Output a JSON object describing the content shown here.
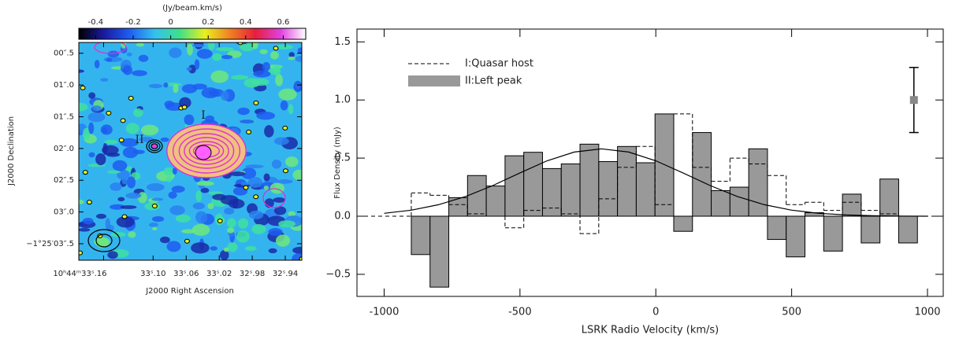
{
  "chart_data": [
    {
      "type": "image",
      "xlabel": "J2000 Right Ascension",
      "ylabel": "J2000 Declination",
      "colorbar_label": "(Jy/beam.km/s)",
      "colormap": [
        "#000000",
        "#1a1aa0",
        "#1e5cf0",
        "#33c0f0",
        "#3fe08a",
        "#e8f020",
        "#f08020",
        "#e81e3c",
        "#e040e0",
        "#ffffff"
      ],
      "clim": [
        -0.49,
        0.72
      ],
      "cticks": [
        -0.4,
        -0.2,
        0,
        0.2,
        0.4,
        0.6
      ],
      "xlim": [
        33.19,
        32.92
      ],
      "xticks": [
        {
          "value": 33.16,
          "label": "10ʰ44ᵐ33ˢ.16"
        },
        {
          "value": 33.1,
          "label": "33ˢ.10"
        },
        {
          "value": 33.06,
          "label": "33ˢ.06"
        },
        {
          "value": 33.02,
          "label": "33ˢ.02"
        },
        {
          "value": 32.98,
          "label": "32ˢ.98"
        },
        {
          "value": 32.94,
          "label": "32ˢ.94"
        }
      ],
      "ylim": [
        0.33,
        3.76
      ],
      "yticks": [
        {
          "value": 0.5,
          "label": "00″.5"
        },
        {
          "value": 1.0,
          "label": "01″.0"
        },
        {
          "value": 1.5,
          "label": "01″.5"
        },
        {
          "value": 2.0,
          "label": "02″.0"
        },
        {
          "value": 2.5,
          "label": "02″.5"
        },
        {
          "value": 3.0,
          "label": "03″.0"
        },
        {
          "value": 3.5,
          "label": "−1°25′03″.5"
        }
      ],
      "annotations": [
        "I",
        "II"
      ]
    },
    {
      "type": "histogram",
      "xlabel": "LSRK Radio Velocity (km/s)",
      "ylabel": "Flux Density (mJy)",
      "xlim": [
        -1100,
        1058
      ],
      "ylim": [
        -0.69,
        1.61
      ],
      "xticks": [
        -1000,
        -500,
        0,
        500,
        1000
      ],
      "yticks": [
        {
          "value": -0.5,
          "label": "−0.5"
        },
        {
          "value": 0,
          "label": "0.0"
        },
        0.5,
        {
          "value": 1,
          "label": "1.0"
        },
        1.5
      ],
      "legend": "upper left",
      "bins": [
        -900,
        -831,
        -762,
        -693,
        -624,
        -555,
        -486,
        -417,
        -348,
        -279,
        -210,
        -141,
        -72,
        -3,
        66,
        135,
        204,
        273,
        342,
        411,
        480,
        549,
        618,
        687,
        756,
        825,
        894,
        963
      ],
      "series": [
        {
          "name": "I:Quasar host",
          "color": "#000000",
          "style": "dashed",
          "values": [
            0.2,
            0.18,
            0.1,
            0.02,
            0.0,
            -0.1,
            0.05,
            0.07,
            0.02,
            -0.15,
            0.15,
            0.42,
            0.6,
            0.1,
            0.88,
            0.42,
            0.3,
            0.5,
            0.45,
            0.35,
            0.1,
            0.12,
            0.05,
            0.12,
            0.05,
            0.02,
            0.0
          ]
        },
        {
          "name": "II:Left peak",
          "color": "#999999",
          "style": "filled",
          "values": [
            -0.33,
            -0.61,
            0.16,
            0.35,
            0.26,
            0.52,
            0.55,
            0.41,
            0.45,
            0.62,
            0.47,
            0.6,
            0.46,
            0.88,
            -0.13,
            0.72,
            0.22,
            0.25,
            0.58,
            -0.2,
            -0.35,
            0.03,
            -0.3,
            0.19,
            -0.23,
            0.32,
            -0.23
          ]
        }
      ],
      "fit": {
        "x": [
          -1000,
          -900,
          -800,
          -700,
          -600,
          -500,
          -400,
          -300,
          -200,
          -100,
          0,
          100,
          200,
          300,
          400,
          500,
          600,
          700,
          800,
          900,
          1000
        ],
        "values": [
          0.025,
          0.052,
          0.099,
          0.17,
          0.264,
          0.373,
          0.477,
          0.552,
          0.58,
          0.552,
          0.477,
          0.373,
          0.264,
          0.17,
          0.099,
          0.052,
          0.025,
          0.011,
          0.004,
          0.001,
          0
        ]
      },
      "error_bar": {
        "x": 950,
        "value": 1.0,
        "error": 0.28
      }
    }
  ]
}
